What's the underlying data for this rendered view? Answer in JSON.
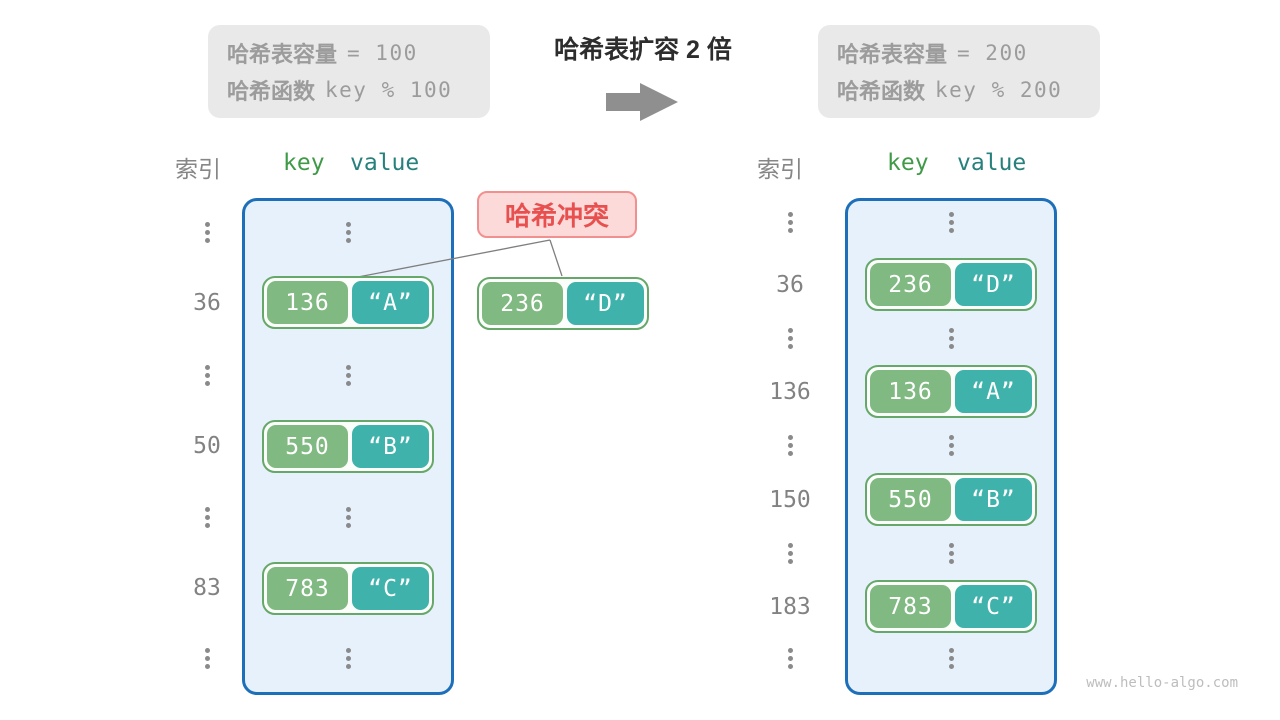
{
  "title": "哈希表扩容 2 倍",
  "info_before": {
    "capacity_label": "哈希表容量",
    "capacity_code": "= 100",
    "hash_label": "哈希函数",
    "hash_code": "key % 100"
  },
  "info_after": {
    "capacity_label": "哈希表容量",
    "capacity_code": "= 200",
    "hash_label": "哈希函数",
    "hash_code": "key % 200"
  },
  "headers": {
    "index": "索引",
    "key": "key",
    "value": "value"
  },
  "collision": {
    "label": "哈希冲突"
  },
  "pairs": {
    "a": {
      "key": "136",
      "value": "“A”"
    },
    "b": {
      "key": "550",
      "value": "“B”"
    },
    "c": {
      "key": "783",
      "value": "“C”"
    },
    "d": {
      "key": "236",
      "value": "“D”"
    }
  },
  "table_before": {
    "indices": [
      "36",
      "50",
      "83"
    ]
  },
  "table_after": {
    "indices": [
      "36",
      "136",
      "150",
      "183"
    ]
  },
  "watermark": "www.hello-algo.com",
  "colors": {
    "accent_blue": "#1e6fba",
    "table_fill": "#e7f1fb",
    "key_green": "#80b981",
    "value_teal": "#3fb2ab",
    "pair_border": "#66a869",
    "pair_fill": "#fcfefc",
    "collision_text": "#e8504f",
    "collision_fill": "#fbdad9",
    "collision_border": "#f2908f",
    "header_key_green": "#3f9a47",
    "header_value_teal": "#26807b",
    "gray_text": "#9c9c9c",
    "dark_text": "#2d2d2d",
    "muted_gray": "#828282",
    "arrow_gray": "#8f8f8f",
    "infobox_fill": "#e9e9e9",
    "connector_gray": "#7f7f7f",
    "watermark_gray": "#bdbdbd"
  }
}
